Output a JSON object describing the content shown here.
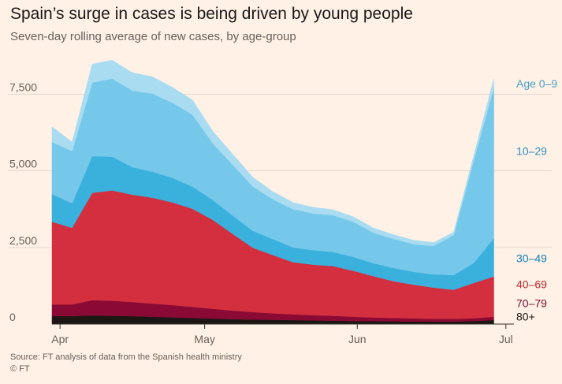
{
  "title": "Spain’s surge in cases is being driven by young people",
  "subtitle": "Seven-day rolling average of new cases, by age-group",
  "source": "Source: FT analysis of data from the Spanish health ministry",
  "copyright": "© FT",
  "chart_data": {
    "type": "area",
    "stacked": true,
    "title": "Spain’s surge in cases is being driven by young people",
    "subtitle": "Seven-day rolling average of new cases, by age-group",
    "xlabel": "",
    "ylabel": "",
    "x_unit": "day (0 = 25 Mar)",
    "x": [
      0,
      5,
      10,
      15,
      20,
      25,
      30,
      35,
      40,
      45,
      50,
      55,
      60,
      65,
      70,
      75,
      80,
      85,
      90,
      95,
      100,
      105,
      110
    ],
    "x_ticks": [
      {
        "label": "Apr",
        "x": 2
      },
      {
        "label": "May",
        "x": 38
      },
      {
        "label": "Jun",
        "x": 76
      },
      {
        "label": "Jul",
        "x": 113
      }
    ],
    "ylim": [
      0,
      8000
    ],
    "y_ticks": [
      {
        "label": "0",
        "value": 0
      },
      {
        "label": "2,500",
        "value": 2500
      },
      {
        "label": "5,000",
        "value": 5000
      },
      {
        "label": "7,500",
        "value": 7500
      }
    ],
    "grid": true,
    "legend": "labels at right end of series",
    "series": [
      {
        "name": "80+",
        "color": "#1c1714",
        "values": [
          260,
          260,
          280,
          270,
          260,
          240,
          220,
          200,
          180,
          160,
          150,
          140,
          130,
          120,
          110,
          100,
          95,
          90,
          85,
          80,
          80,
          100,
          130
        ]
      },
      {
        "name": "70–79",
        "color": "#8a0a35",
        "values": [
          380,
          380,
          500,
          490,
          460,
          430,
          400,
          360,
          320,
          280,
          240,
          210,
          190,
          170,
          160,
          140,
          120,
          110,
          100,
          90,
          90,
          90,
          110
        ]
      },
      {
        "name": "40–69",
        "color": "#d32f3f",
        "values": [
          2700,
          2500,
          3500,
          3600,
          3500,
          3450,
          3350,
          3200,
          2900,
          2500,
          2100,
          1900,
          1700,
          1650,
          1620,
          1500,
          1350,
          1200,
          1100,
          1020,
          950,
          1150,
          1310
        ]
      },
      {
        "name": "30–49",
        "color": "#3ab0dc",
        "values": [
          900,
          800,
          1200,
          1100,
          900,
          850,
          800,
          720,
          650,
          600,
          550,
          520,
          480,
          470,
          460,
          450,
          420,
          430,
          420,
          430,
          480,
          650,
          1250
        ]
      },
      {
        "name": "10–29",
        "color": "#75c8e9",
        "values": [
          1700,
          1700,
          2400,
          2550,
          2500,
          2550,
          2450,
          2350,
          1850,
          1650,
          1450,
          1300,
          1250,
          1200,
          1200,
          1150,
          1000,
          950,
          900,
          930,
          1300,
          3350,
          4900
        ]
      },
      {
        "name": "Age 0–9",
        "color": "#a9dcf1",
        "values": [
          500,
          300,
          600,
          600,
          580,
          550,
          500,
          480,
          400,
          350,
          300,
          250,
          220,
          200,
          180,
          160,
          150,
          140,
          130,
          110,
          100,
          160,
          300
        ]
      }
    ]
  }
}
